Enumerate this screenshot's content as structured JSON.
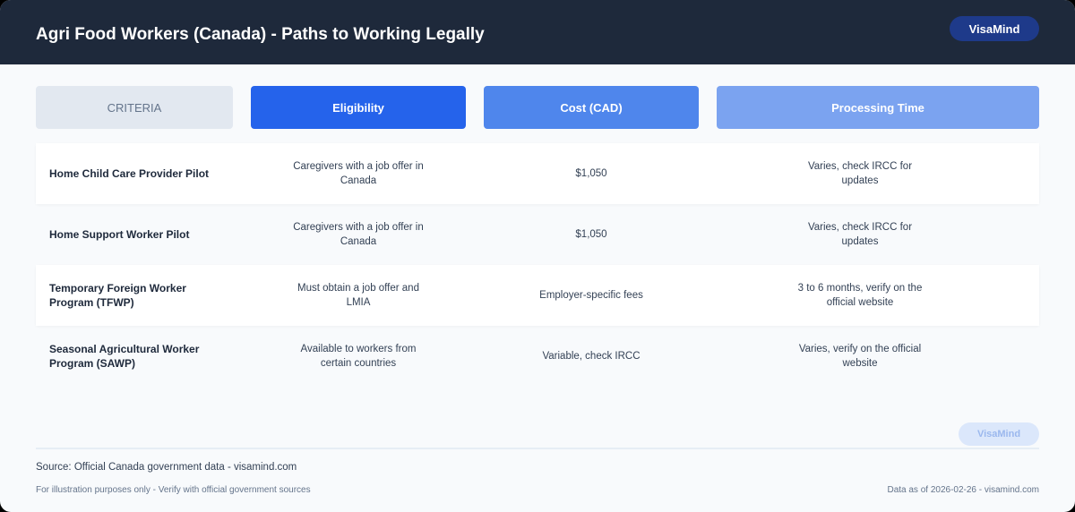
{
  "header": {
    "title": "Agri Food Workers (Canada) - Paths to Working Legally",
    "badge": "VisaMind"
  },
  "columns": [
    "CRITERIA",
    "Eligibility",
    "Cost (CAD)",
    "Processing Time"
  ],
  "colors": {
    "header_bg": "#1e293b",
    "criteria": "#e2e8f0",
    "eligibility": "#2563eb",
    "cost": "#4f86ec",
    "processing": "#7ba3f0"
  },
  "rows": [
    {
      "name": "Home Child Care Provider Pilot",
      "eligibility": "Caregivers with a job offer in Canada",
      "cost": "$1,050",
      "processing": "Varies, check IRCC for updates"
    },
    {
      "name": "Home Support Worker Pilot",
      "eligibility": "Caregivers with a job offer in Canada",
      "cost": "$1,050",
      "processing": "Varies, check IRCC for updates"
    },
    {
      "name": "Temporary Foreign Worker Program (TFWP)",
      "eligibility": "Must obtain a job offer and LMIA",
      "cost": "Employer-specific fees",
      "processing": "3 to 6 months, verify on the official website"
    },
    {
      "name": "Seasonal Agricultural Worker Program (SAWP)",
      "eligibility": "Available to workers from certain countries",
      "cost": "Variable, check IRCC",
      "processing": "Varies, verify on the official website"
    }
  ],
  "footer": {
    "watermark": "VisaMind",
    "source": "Source: Official Canada government data - visamind.com",
    "disclaimer": "For illustration purposes only - Verify with official government sources",
    "date": "Data as of 2026-02-26 - visamind.com"
  }
}
